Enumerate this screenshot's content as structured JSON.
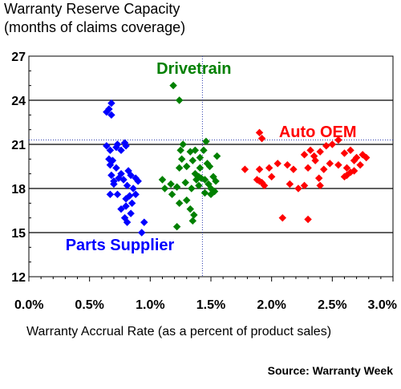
{
  "chart_data": {
    "type": "scatter",
    "title": "Warranty Reserve Capacity",
    "subtitle": "(months of claims coverage)",
    "xlabel": "Warranty Accrual Rate (as a percent of product sales)",
    "ylabel": "",
    "xlim": [
      0,
      3
    ],
    "ylim": [
      12,
      27
    ],
    "x_ticks": [
      {
        "value": 0.0,
        "label": "0.0%"
      },
      {
        "value": 0.5,
        "label": "0.5%"
      },
      {
        "value": 1.0,
        "label": "1.0%"
      },
      {
        "value": 1.5,
        "label": "1.5%"
      },
      {
        "value": 2.0,
        "label": "2.0%"
      },
      {
        "value": 2.5,
        "label": "2.5%"
      },
      {
        "value": 3.0,
        "label": "3.0%"
      }
    ],
    "y_ticks": [
      {
        "value": 12,
        "label": "12"
      },
      {
        "value": 15,
        "label": "15"
      },
      {
        "value": 18,
        "label": "18"
      },
      {
        "value": 21,
        "label": "21"
      },
      {
        "value": 24,
        "label": "24"
      },
      {
        "value": 27,
        "label": "27"
      }
    ],
    "grid": "horizontal",
    "reference_lines": {
      "x": 1.43,
      "y": 21.3
    },
    "source": "Source: Warranty Week",
    "series": [
      {
        "name": "Parts Supplier",
        "color": "#0000ff",
        "label_x": 0.75,
        "label_y": 13.8,
        "points": [
          [
            0.64,
            23.2
          ],
          [
            0.66,
            23.4
          ],
          [
            0.68,
            23.8
          ],
          [
            0.68,
            23.0
          ],
          [
            0.64,
            20.9
          ],
          [
            0.67,
            20.6
          ],
          [
            0.66,
            20.0
          ],
          [
            0.67,
            19.6
          ],
          [
            0.69,
            19.9
          ],
          [
            0.72,
            20.8
          ],
          [
            0.73,
            21.0
          ],
          [
            0.72,
            19.4
          ],
          [
            0.76,
            20.6
          ],
          [
            0.79,
            21.1
          ],
          [
            0.8,
            20.9
          ],
          [
            0.68,
            18.9
          ],
          [
            0.7,
            18.5
          ],
          [
            0.74,
            18.7
          ],
          [
            0.76,
            19.0
          ],
          [
            0.78,
            18.6
          ],
          [
            0.82,
            19.2
          ],
          [
            0.84,
            18.9
          ],
          [
            0.88,
            18.7
          ],
          [
            0.9,
            18.5
          ],
          [
            0.81,
            18.2
          ],
          [
            0.86,
            18.0
          ],
          [
            0.7,
            18.3
          ],
          [
            0.73,
            17.6
          ],
          [
            0.67,
            17.6
          ],
          [
            0.8,
            17.3
          ],
          [
            0.83,
            17.5
          ],
          [
            0.88,
            17.6
          ],
          [
            0.85,
            17.0
          ],
          [
            0.8,
            16.8
          ],
          [
            0.76,
            16.6
          ],
          [
            0.84,
            16.3
          ],
          [
            0.79,
            16.0
          ],
          [
            0.81,
            15.7
          ],
          [
            0.95,
            15.7
          ],
          [
            0.93,
            15.0
          ]
        ]
      },
      {
        "name": "Drivetrain",
        "color": "#008000",
        "label_x": 1.36,
        "label_y": 25.8,
        "points": [
          [
            1.19,
            25.0
          ],
          [
            1.24,
            24.0
          ],
          [
            1.27,
            21.0
          ],
          [
            1.25,
            20.6
          ],
          [
            1.33,
            20.5
          ],
          [
            1.37,
            20.6
          ],
          [
            1.46,
            21.2
          ],
          [
            1.44,
            20.6
          ],
          [
            1.55,
            20.2
          ],
          [
            1.41,
            20.1
          ],
          [
            1.35,
            19.9
          ],
          [
            1.26,
            20.0
          ],
          [
            1.24,
            19.4
          ],
          [
            1.3,
            19.5
          ],
          [
            1.41,
            19.4
          ],
          [
            1.49,
            19.5
          ],
          [
            1.47,
            19.7
          ],
          [
            1.37,
            19.0
          ],
          [
            1.4,
            18.8
          ],
          [
            1.42,
            18.7
          ],
          [
            1.38,
            18.6
          ],
          [
            1.45,
            18.6
          ],
          [
            1.52,
            18.8
          ],
          [
            1.54,
            18.5
          ],
          [
            1.1,
            18.6
          ],
          [
            1.17,
            18.3
          ],
          [
            1.12,
            18.0
          ],
          [
            1.22,
            18.1
          ],
          [
            1.29,
            18.4
          ],
          [
            1.34,
            18.0
          ],
          [
            1.4,
            18.2
          ],
          [
            1.48,
            18.3
          ],
          [
            1.5,
            18.0
          ],
          [
            1.45,
            17.7
          ],
          [
            1.53,
            17.8
          ],
          [
            1.5,
            17.6
          ],
          [
            1.18,
            17.6
          ],
          [
            1.24,
            17.0
          ],
          [
            1.3,
            17.2
          ],
          [
            1.33,
            16.6
          ],
          [
            1.36,
            16.2
          ],
          [
            1.35,
            15.8
          ],
          [
            1.22,
            15.4
          ]
        ]
      },
      {
        "name": "Auto OEM",
        "color": "#ff0000",
        "label_x": 2.38,
        "label_y": 21.5,
        "points": [
          [
            1.9,
            21.8
          ],
          [
            1.92,
            21.4
          ],
          [
            2.27,
            20.3
          ],
          [
            2.32,
            20.6
          ],
          [
            2.35,
            20.2
          ],
          [
            2.4,
            20.5
          ],
          [
            2.45,
            20.9
          ],
          [
            2.5,
            21.0
          ],
          [
            2.55,
            21.3
          ],
          [
            2.6,
            20.4
          ],
          [
            2.65,
            20.6
          ],
          [
            2.7,
            20.1
          ],
          [
            2.75,
            20.3
          ],
          [
            2.78,
            20.1
          ],
          [
            2.36,
            19.9
          ],
          [
            2.48,
            19.7
          ],
          [
            2.55,
            19.6
          ],
          [
            2.62,
            19.4
          ],
          [
            2.68,
            19.9
          ],
          [
            2.73,
            19.6
          ],
          [
            2.3,
            19.4
          ],
          [
            2.43,
            19.3
          ],
          [
            2.6,
            18.8
          ],
          [
            2.65,
            19.1
          ],
          [
            2.62,
            18.9
          ],
          [
            2.68,
            19.2
          ],
          [
            2.18,
            19.3
          ],
          [
            2.13,
            19.6
          ],
          [
            2.05,
            19.7
          ],
          [
            1.98,
            19.4
          ],
          [
            1.9,
            19.3
          ],
          [
            1.78,
            19.3
          ],
          [
            1.88,
            18.6
          ],
          [
            1.92,
            18.4
          ],
          [
            1.94,
            18.2
          ],
          [
            1.9,
            18.5
          ],
          [
            2.0,
            18.8
          ],
          [
            2.15,
            18.3
          ],
          [
            2.22,
            18.0
          ],
          [
            2.27,
            18.2
          ],
          [
            2.39,
            18.7
          ],
          [
            2.4,
            18.2
          ],
          [
            2.09,
            16.0
          ],
          [
            2.3,
            15.9
          ]
        ]
      }
    ]
  }
}
